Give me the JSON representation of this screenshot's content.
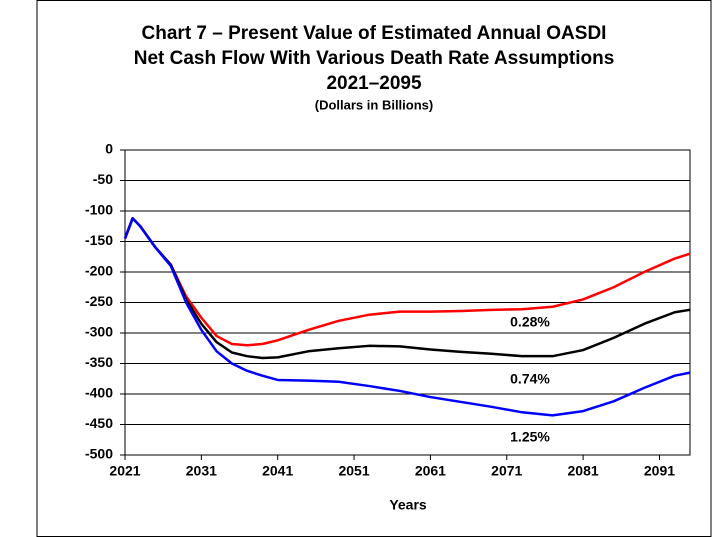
{
  "chart_data": {
    "type": "line",
    "title": "Chart 7 – Present Value of Estimated Annual OASDI",
    "subtitle": [
      "Net Cash Flow With Various Death Rate Assumptions",
      "2021–2095",
      "(Dollars in Billions)"
    ],
    "x_label": "Years",
    "x": [
      2021,
      2022,
      2023,
      2025,
      2027,
      2029,
      2031,
      2033,
      2035,
      2037,
      2039,
      2041,
      2045,
      2049,
      2053,
      2057,
      2061,
      2065,
      2069,
      2073,
      2077,
      2081,
      2085,
      2089,
      2093,
      2095
    ],
    "series": [
      {
        "name": "0.28%",
        "color": "#ff0000",
        "values": [
          -145,
          -112,
          -125,
          -160,
          -188,
          -240,
          -275,
          -305,
          -318,
          -320,
          -318,
          -312,
          -295,
          -280,
          -270,
          -265,
          -265,
          -264,
          -262,
          -261,
          -257,
          -245,
          -225,
          -200,
          -178,
          -170
        ]
      },
      {
        "name": "0.74%",
        "color": "#000000",
        "values": [
          -145,
          -112,
          -125,
          -160,
          -188,
          -245,
          -285,
          -315,
          -332,
          -338,
          -341,
          -340,
          -330,
          -325,
          -321,
          -322,
          -327,
          -331,
          -334,
          -338,
          -338,
          -328,
          -308,
          -285,
          -266,
          -262
        ]
      },
      {
        "name": "1.25%",
        "color": "#0000ff",
        "values": [
          -145,
          -112,
          -125,
          -160,
          -190,
          -250,
          -295,
          -330,
          -350,
          -362,
          -370,
          -377,
          -378,
          -380,
          -387,
          -395,
          -405,
          -413,
          -421,
          -430,
          -435,
          -428,
          -412,
          -390,
          -370,
          -365
        ]
      }
    ],
    "xlim": [
      2021,
      2095
    ],
    "xticks": [
      2021,
      2031,
      2041,
      2051,
      2061,
      2071,
      2081,
      2091
    ],
    "ylim": [
      -500,
      0
    ],
    "yticks": [
      0,
      -50,
      -100,
      -150,
      -200,
      -250,
      -300,
      -350,
      -400,
      -450,
      -500
    ],
    "grid": true
  }
}
